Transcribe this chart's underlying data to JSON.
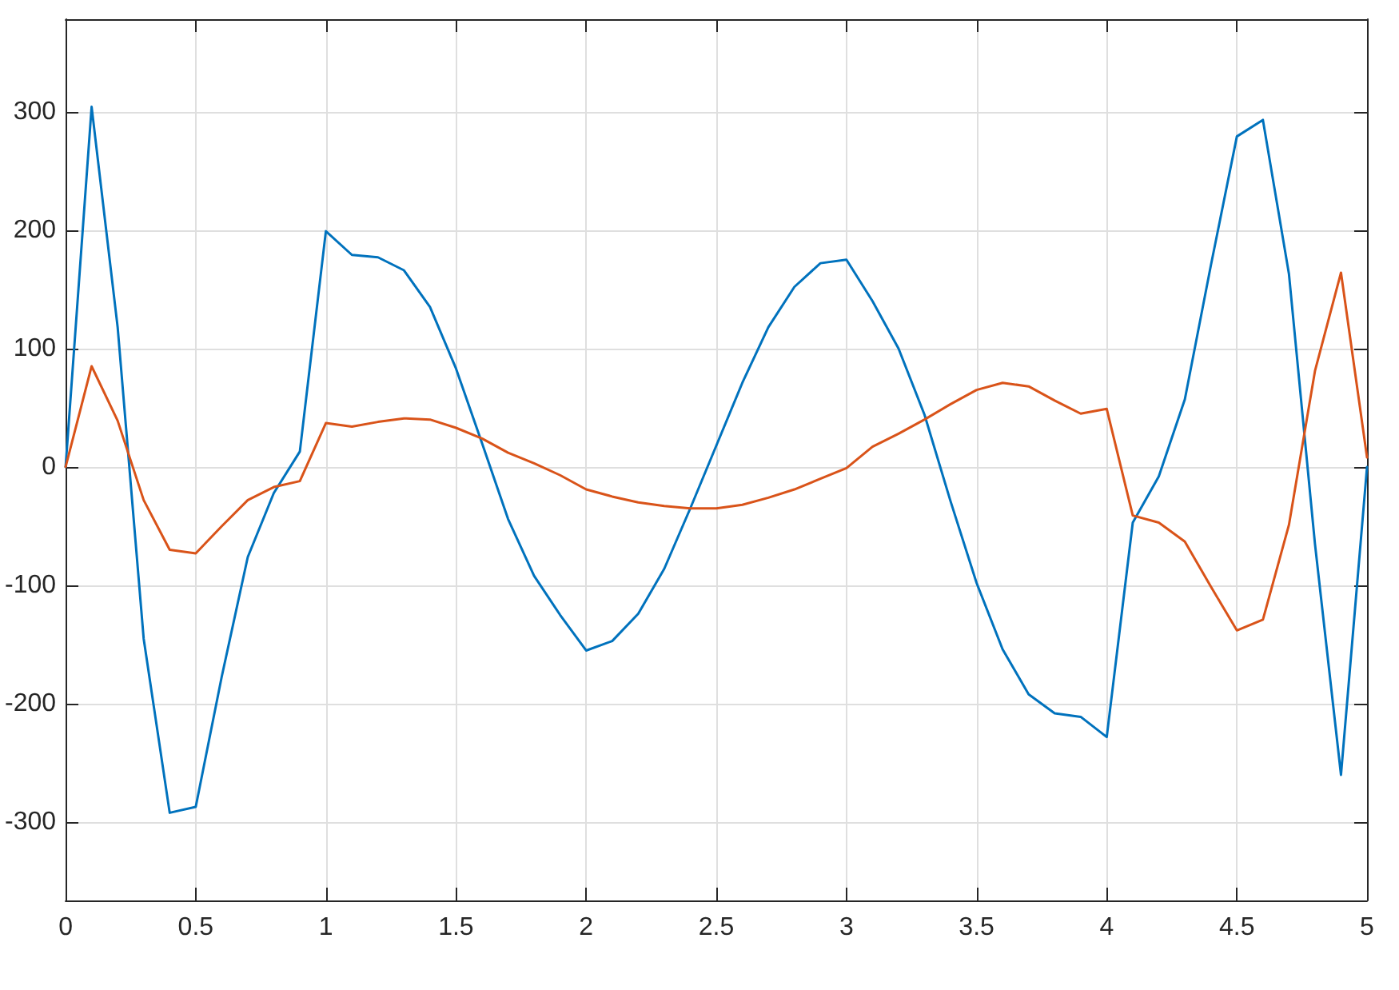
{
  "chart_data": {
    "type": "line",
    "x": [
      0,
      0.1,
      0.2,
      0.3,
      0.4,
      0.5,
      0.6,
      0.7,
      0.8,
      0.9,
      1,
      1.1,
      1.2,
      1.3,
      1.4,
      1.5,
      1.6,
      1.7,
      1.8,
      1.9,
      2,
      2.1,
      2.2,
      2.3,
      2.4,
      2.5,
      2.6,
      2.7,
      2.8,
      2.9,
      3,
      3.1,
      3.2,
      3.3,
      3.4,
      3.5,
      3.6,
      3.7,
      3.8,
      3.9,
      4,
      4.1,
      4.2,
      4.3,
      4.4,
      4.5,
      4.6,
      4.7,
      4.8,
      4.9,
      5
    ],
    "series": [
      {
        "color": "#0072bd",
        "values": [
          0,
          304,
          118,
          -145,
          -292,
          -287,
          -177,
          -76,
          -22,
          13,
          199,
          179,
          177,
          166,
          135,
          83,
          20,
          -44,
          -92,
          -125,
          -155,
          -147,
          -124,
          -86,
          -35,
          18,
          71,
          118,
          152,
          172,
          175,
          140,
          100,
          44,
          -29,
          -98,
          -154,
          -192,
          -208,
          -211,
          -228,
          -47,
          -8,
          57,
          170,
          279,
          293,
          163,
          -65,
          -260,
          0
        ]
      },
      {
        "color": "#d95319",
        "values": [
          0,
          85,
          39,
          -28,
          -70,
          -73,
          -50,
          -28,
          -17,
          -12,
          37,
          34,
          38,
          41,
          40,
          33,
          24,
          12,
          3,
          -7,
          -19,
          -25,
          -30,
          -33,
          -35,
          -35,
          -32,
          -26,
          -19,
          -10,
          -1,
          17,
          28,
          40,
          53,
          65,
          71,
          68,
          56,
          45,
          49,
          -41,
          -47,
          -63,
          -101,
          -138,
          -129,
          -49,
          81,
          164,
          8
        ]
      }
    ],
    "xlim": [
      0,
      5
    ],
    "xticks": [
      0,
      0.5,
      1,
      1.5,
      2,
      2.5,
      3,
      3.5,
      4,
      4.5,
      5
    ],
    "ylim": [
      -366,
      378
    ],
    "yticks": [
      -300,
      -200,
      -100,
      0,
      100,
      200,
      300
    ],
    "grid": true,
    "marker": "none",
    "line_style": "solid"
  }
}
